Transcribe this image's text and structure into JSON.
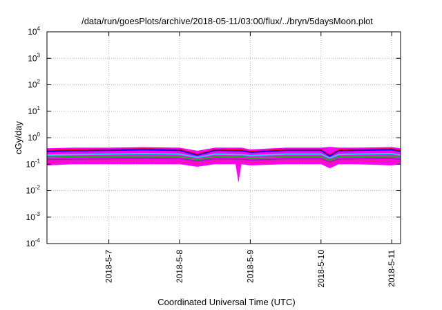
{
  "chart_data": {
    "type": "area",
    "title": "/data/run/goesPlots/archive/2018-05-11/03:00/flux/../bryn/5daysMoon.plot",
    "xlabel": "Coordinated Universal Time (UTC)",
    "ylabel": "cGy/day",
    "yscale": "log",
    "ylim": [
      0.0001,
      10000
    ],
    "y_ticks": [
      {
        "base": "10",
        "exp": "-4",
        "value": 0.0001
      },
      {
        "base": "10",
        "exp": "-3",
        "value": 0.001
      },
      {
        "base": "10",
        "exp": "-2",
        "value": 0.01
      },
      {
        "base": "10",
        "exp": "-1",
        "value": 0.1
      },
      {
        "base": "10",
        "exp": "0",
        "value": 1
      },
      {
        "base": "10",
        "exp": "1",
        "value": 10
      },
      {
        "base": "10",
        "exp": "2",
        "value": 100
      },
      {
        "base": "10",
        "exp": "3",
        "value": 1000
      },
      {
        "base": "10",
        "exp": "4",
        "value": 10000
      }
    ],
    "xlim": [
      "2018-05-06T03:00",
      "2018-05-11T03:00"
    ],
    "x_ticks": [
      {
        "label": "2018-5-7",
        "date": "2018-05-07T00:00"
      },
      {
        "label": "2018-5-8",
        "date": "2018-05-08T00:00"
      },
      {
        "label": "2018-5-9",
        "date": "2018-05-09T00:00"
      },
      {
        "label": "2018-5-10",
        "date": "2018-05-10T00:00"
      },
      {
        "label": "2018-5-11",
        "date": "2018-05-11T00:00"
      }
    ],
    "grid": true,
    "band": {
      "color": "#ff00ff",
      "x": [
        "2018-05-06T03:00",
        "2018-05-06T12:00",
        "2018-05-07T00:00",
        "2018-05-07T12:00",
        "2018-05-08T00:00",
        "2018-05-08T06:00",
        "2018-05-08T12:00",
        "2018-05-08T19:00",
        "2018-05-08T20:00",
        "2018-05-08T21:00",
        "2018-05-09T00:00",
        "2018-05-09T12:00",
        "2018-05-10T00:00",
        "2018-05-10T03:00",
        "2018-05-10T06:00",
        "2018-05-10T12:00",
        "2018-05-11T00:00",
        "2018-05-11T03:00"
      ],
      "low": [
        0.09,
        0.1,
        0.1,
        0.1,
        0.1,
        0.08,
        0.1,
        0.1,
        0.02,
        0.1,
        0.09,
        0.1,
        0.1,
        0.07,
        0.1,
        0.1,
        0.09,
        0.1
      ],
      "high": [
        0.4,
        0.42,
        0.42,
        0.44,
        0.42,
        0.32,
        0.42,
        0.42,
        0.42,
        0.42,
        0.36,
        0.42,
        0.42,
        0.45,
        0.42,
        0.42,
        0.44,
        0.4
      ]
    },
    "series": [
      {
        "color": "#ff0000",
        "values": [
          0.33,
          0.35,
          0.36,
          0.38,
          0.36,
          0.24,
          0.36,
          0.35,
          0.35,
          0.35,
          0.3,
          0.36,
          0.36,
          0.22,
          0.35,
          0.36,
          0.38,
          0.33
        ]
      },
      {
        "color": "#0000ff",
        "values": [
          0.3,
          0.32,
          0.33,
          0.35,
          0.33,
          0.22,
          0.33,
          0.32,
          0.32,
          0.32,
          0.28,
          0.33,
          0.33,
          0.2,
          0.32,
          0.33,
          0.35,
          0.3
        ]
      },
      {
        "color": "#00e5ee",
        "values": [
          0.22,
          0.23,
          0.24,
          0.25,
          0.24,
          0.18,
          0.24,
          0.23,
          0.23,
          0.23,
          0.21,
          0.24,
          0.24,
          0.17,
          0.23,
          0.24,
          0.25,
          0.22
        ]
      },
      {
        "color": "#00c000",
        "values": [
          0.18,
          0.19,
          0.19,
          0.2,
          0.19,
          0.15,
          0.19,
          0.19,
          0.19,
          0.19,
          0.17,
          0.19,
          0.19,
          0.14,
          0.19,
          0.19,
          0.2,
          0.18
        ]
      },
      {
        "color": "#a020a0",
        "values": [
          0.15,
          0.155,
          0.16,
          0.165,
          0.16,
          0.13,
          0.16,
          0.155,
          0.155,
          0.155,
          0.14,
          0.16,
          0.16,
          0.12,
          0.155,
          0.16,
          0.165,
          0.15
        ]
      },
      {
        "color": "#ff1493",
        "values": [
          0.12,
          0.125,
          0.13,
          0.13,
          0.125,
          0.105,
          0.13,
          0.125,
          0.125,
          0.125,
          0.115,
          0.13,
          0.13,
          0.1,
          0.125,
          0.13,
          0.13,
          0.12
        ]
      }
    ]
  }
}
